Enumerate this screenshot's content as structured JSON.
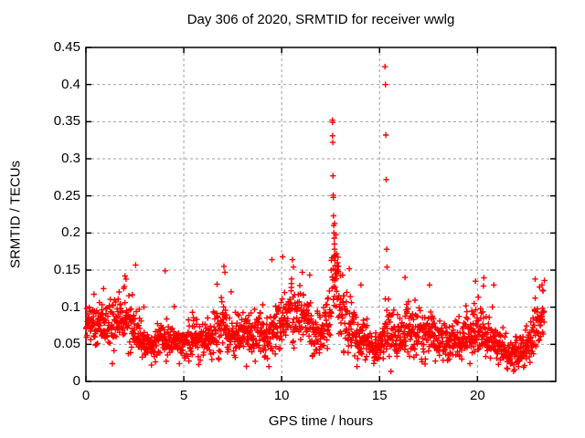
{
  "chart_data": {
    "type": "scatter",
    "title": "Day 306 of 2020, SRMTID for receiver wwlg",
    "xlabel": "GPS time / hours",
    "ylabel": "SRMTID / TECUs",
    "xlim": [
      0,
      24
    ],
    "ylim": [
      0,
      0.45
    ],
    "xticks": [
      0,
      5,
      10,
      15,
      20
    ],
    "yticks": [
      0,
      0.05,
      0.1,
      0.15,
      0.2,
      0.25,
      0.3,
      0.35,
      0.4,
      0.45
    ],
    "grid": true,
    "legend": null,
    "marker": "plus",
    "marker_color": "#ff0000",
    "grid_color": "#9e9e9e",
    "axis_color": "#000000",
    "background_color": "#ffffff",
    "data_time_range_hours": [
      0,
      23.42
    ],
    "approx_point_count": 1850,
    "distribution": {
      "comment_envelope": "piecewise-linear [hour, median_TECU, spread_TECU] envelope of the dense noisy baseline",
      "envelope": [
        [
          0.0,
          0.075,
          0.028
        ],
        [
          0.5,
          0.08,
          0.028
        ],
        [
          1.0,
          0.075,
          0.03
        ],
        [
          1.5,
          0.078,
          0.032
        ],
        [
          2.0,
          0.085,
          0.035
        ],
        [
          2.3,
          0.08,
          0.035
        ],
        [
          2.7,
          0.06,
          0.025
        ],
        [
          3.0,
          0.05,
          0.016
        ],
        [
          3.5,
          0.048,
          0.016
        ],
        [
          4.0,
          0.058,
          0.03
        ],
        [
          4.3,
          0.052,
          0.022
        ],
        [
          5.0,
          0.05,
          0.02
        ],
        [
          5.5,
          0.06,
          0.026
        ],
        [
          6.0,
          0.052,
          0.02
        ],
        [
          6.5,
          0.06,
          0.03
        ],
        [
          7.0,
          0.072,
          0.04
        ],
        [
          7.4,
          0.06,
          0.026
        ],
        [
          8.0,
          0.06,
          0.03
        ],
        [
          8.5,
          0.062,
          0.03
        ],
        [
          9.0,
          0.068,
          0.034
        ],
        [
          9.5,
          0.062,
          0.03
        ],
        [
          10.0,
          0.08,
          0.032
        ],
        [
          10.6,
          0.09,
          0.036
        ],
        [
          11.2,
          0.085,
          0.035
        ],
        [
          11.6,
          0.07,
          0.03
        ],
        [
          12.0,
          0.062,
          0.026
        ],
        [
          12.4,
          0.095,
          0.045
        ],
        [
          12.7,
          0.13,
          0.05
        ],
        [
          13.0,
          0.11,
          0.045
        ],
        [
          13.3,
          0.085,
          0.04
        ],
        [
          13.7,
          0.065,
          0.03
        ],
        [
          14.2,
          0.052,
          0.024
        ],
        [
          14.7,
          0.045,
          0.02
        ],
        [
          15.1,
          0.05,
          0.022
        ],
        [
          15.5,
          0.07,
          0.04
        ],
        [
          16.0,
          0.065,
          0.035
        ],
        [
          16.5,
          0.07,
          0.035
        ],
        [
          17.0,
          0.06,
          0.03
        ],
        [
          17.6,
          0.065,
          0.03
        ],
        [
          18.1,
          0.055,
          0.025
        ],
        [
          18.6,
          0.05,
          0.022
        ],
        [
          19.2,
          0.055,
          0.026
        ],
        [
          19.8,
          0.068,
          0.032
        ],
        [
          20.2,
          0.062,
          0.03
        ],
        [
          20.7,
          0.055,
          0.026
        ],
        [
          21.2,
          0.045,
          0.02
        ],
        [
          21.6,
          0.038,
          0.018
        ],
        [
          22.1,
          0.04,
          0.02
        ],
        [
          22.6,
          0.052,
          0.026
        ],
        [
          23.0,
          0.075,
          0.035
        ],
        [
          23.42,
          0.09,
          0.035
        ]
      ],
      "comment_outliers": "individually visible points [hour, TECU], incl. spikes at ~12.6h and ~15.3h",
      "outlier_points": [
        [
          12.59,
          0.352
        ],
        [
          12.6,
          0.349
        ],
        [
          12.6,
          0.331
        ],
        [
          12.61,
          0.322
        ],
        [
          12.62,
          0.277
        ],
        [
          12.63,
          0.251
        ],
        [
          12.64,
          0.248
        ],
        [
          12.65,
          0.223
        ],
        [
          12.66,
          0.21
        ],
        [
          12.67,
          0.2
        ],
        [
          12.68,
          0.193
        ],
        [
          12.69,
          0.185
        ],
        [
          12.7,
          0.178
        ],
        [
          12.71,
          0.17
        ],
        [
          12.72,
          0.163
        ],
        [
          12.73,
          0.156
        ],
        [
          12.74,
          0.15
        ],
        [
          12.76,
          0.145
        ],
        [
          12.8,
          0.172
        ],
        [
          12.85,
          0.16
        ],
        [
          12.9,
          0.155
        ],
        [
          15.28,
          0.424
        ],
        [
          15.3,
          0.4
        ],
        [
          15.32,
          0.332
        ],
        [
          15.34,
          0.272
        ],
        [
          15.36,
          0.178
        ],
        [
          15.38,
          0.154
        ],
        [
          0.9,
          0.125
        ],
        [
          2.0,
          0.142
        ],
        [
          2.05,
          0.138
        ],
        [
          4.05,
          0.149
        ],
        [
          6.7,
          0.131
        ],
        [
          7.05,
          0.155
        ],
        [
          7.1,
          0.147
        ],
        [
          9.5,
          0.164
        ],
        [
          10.05,
          0.168
        ],
        [
          10.55,
          0.164
        ],
        [
          10.6,
          0.154
        ],
        [
          11.05,
          0.147
        ],
        [
          13.45,
          0.152
        ],
        [
          14.05,
          0.13
        ],
        [
          16.3,
          0.14
        ],
        [
          17.55,
          0.13
        ],
        [
          19.9,
          0.135
        ],
        [
          20.84,
          0.13
        ],
        [
          22.95,
          0.138
        ],
        [
          23.3,
          0.13
        ],
        [
          23.35,
          0.122
        ],
        [
          1.35,
          0.024
        ],
        [
          3.35,
          0.022
        ],
        [
          9.35,
          0.02
        ],
        [
          13.85,
          0.02
        ],
        [
          14.9,
          0.03
        ],
        [
          21.5,
          0.018
        ],
        [
          21.9,
          0.016
        ],
        [
          22.1,
          0.02
        ]
      ],
      "noise_seed": 306,
      "upper_tail_probability": 0.045,
      "upper_tail_scale": 2.6
    }
  }
}
